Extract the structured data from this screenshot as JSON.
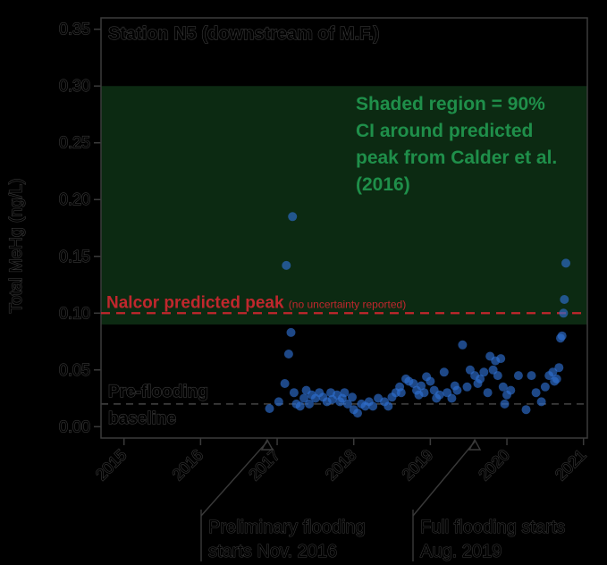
{
  "chart_data": {
    "type": "scatter",
    "title": "Station N5 (downstream of M.F.)",
    "xlabel": "",
    "ylabel": "Total MeHg (ng/L)",
    "xlim": [
      2014.7,
      2021.05
    ],
    "ylim": [
      -0.01,
      0.36
    ],
    "x_ticks": [
      2015,
      2016,
      2017,
      2018,
      2019,
      2020,
      2021
    ],
    "x_tick_labels": [
      "2015",
      "2016",
      "2017",
      "2018",
      "2019",
      "2020",
      "2021"
    ],
    "y_ticks": [
      0.0,
      0.05,
      0.1,
      0.15,
      0.2,
      0.25,
      0.3,
      0.35
    ],
    "y_tick_labels": [
      "0.00",
      "0.05",
      "0.10",
      "0.15",
      "0.20",
      "0.25",
      "0.30",
      "0.35"
    ],
    "colors": {
      "points": "#2e6fd0",
      "nalcor": "#c0272d",
      "shade": "#0c2a12",
      "ci_text": "#1f8f4a"
    },
    "shaded_region": {
      "ymin": 0.09,
      "ymax": 0.3,
      "label": "Shaded region = 90% CI around predicted peak from Calder et al. (2016)"
    },
    "ci_label_lines": [
      "Shaded region = 90%",
      "CI around predicted",
      "peak from Calder et al.",
      "(2016)"
    ],
    "nalcor_line": {
      "y": 0.1,
      "label": "Nalcor predicted peak",
      "note": "(no uncertainty reported)"
    },
    "baseline_line": {
      "y": 0.02,
      "label_line1": "Pre-flooding",
      "label_line2": "baseline"
    },
    "annotations": [
      {
        "x": 2016.87,
        "lines": [
          "Preliminary flooding",
          "starts Nov. 2016"
        ]
      },
      {
        "x": 2019.58,
        "lines": [
          "Full flooding starts",
          "Aug. 2019"
        ]
      }
    ],
    "points": [
      [
        2016.9,
        0.016
      ],
      [
        2017.02,
        0.022
      ],
      [
        2017.1,
        0.038
      ],
      [
        2017.12,
        0.142
      ],
      [
        2017.15,
        0.064
      ],
      [
        2017.18,
        0.083
      ],
      [
        2017.2,
        0.185
      ],
      [
        2017.22,
        0.03
      ],
      [
        2017.25,
        0.02
      ],
      [
        2017.3,
        0.018
      ],
      [
        2017.35,
        0.025
      ],
      [
        2017.38,
        0.032
      ],
      [
        2017.42,
        0.02
      ],
      [
        2017.45,
        0.028
      ],
      [
        2017.5,
        0.025
      ],
      [
        2017.55,
        0.03
      ],
      [
        2017.6,
        0.026
      ],
      [
        2017.65,
        0.022
      ],
      [
        2017.7,
        0.03
      ],
      [
        2017.72,
        0.024
      ],
      [
        2017.78,
        0.028
      ],
      [
        2017.82,
        0.022
      ],
      [
        2017.85,
        0.025
      ],
      [
        2017.88,
        0.03
      ],
      [
        2017.92,
        0.02
      ],
      [
        2017.98,
        0.026
      ],
      [
        2018.0,
        0.015
      ],
      [
        2018.05,
        0.012
      ],
      [
        2018.1,
        0.02
      ],
      [
        2018.15,
        0.018
      ],
      [
        2018.2,
        0.022
      ],
      [
        2018.25,
        0.018
      ],
      [
        2018.32,
        0.025
      ],
      [
        2018.4,
        0.022
      ],
      [
        2018.45,
        0.018
      ],
      [
        2018.5,
        0.026
      ],
      [
        2018.55,
        0.03
      ],
      [
        2018.6,
        0.035
      ],
      [
        2018.62,
        0.03
      ],
      [
        2018.68,
        0.042
      ],
      [
        2018.72,
        0.04
      ],
      [
        2018.78,
        0.038
      ],
      [
        2018.82,
        0.032
      ],
      [
        2018.85,
        0.028
      ],
      [
        2018.88,
        0.036
      ],
      [
        2018.92,
        0.03
      ],
      [
        2018.95,
        0.044
      ],
      [
        2019.0,
        0.04
      ],
      [
        2019.05,
        0.032
      ],
      [
        2019.08,
        0.025
      ],
      [
        2019.12,
        0.028
      ],
      [
        2019.18,
        0.048
      ],
      [
        2019.22,
        0.03
      ],
      [
        2019.28,
        0.025
      ],
      [
        2019.32,
        0.036
      ],
      [
        2019.35,
        0.032
      ],
      [
        2019.42,
        0.072
      ],
      [
        2019.48,
        0.035
      ],
      [
        2019.52,
        0.05
      ],
      [
        2019.58,
        0.045
      ],
      [
        2019.62,
        0.038
      ],
      [
        2019.65,
        0.042
      ],
      [
        2019.7,
        0.048
      ],
      [
        2019.75,
        0.03
      ],
      [
        2019.78,
        0.062
      ],
      [
        2019.82,
        0.05
      ],
      [
        2019.85,
        0.058
      ],
      [
        2019.88,
        0.045
      ],
      [
        2019.92,
        0.06
      ],
      [
        2019.95,
        0.035
      ],
      [
        2019.97,
        0.02
      ],
      [
        2020.0,
        0.028
      ],
      [
        2020.05,
        0.032
      ],
      [
        2020.15,
        0.045
      ],
      [
        2020.25,
        0.015
      ],
      [
        2020.32,
        0.045
      ],
      [
        2020.38,
        0.03
      ],
      [
        2020.45,
        0.022
      ],
      [
        2020.5,
        0.035
      ],
      [
        2020.55,
        0.045
      ],
      [
        2020.6,
        0.048
      ],
      [
        2020.62,
        0.04
      ],
      [
        2020.65,
        0.042
      ],
      [
        2020.68,
        0.052
      ],
      [
        2020.7,
        0.078
      ],
      [
        2020.72,
        0.08
      ],
      [
        2020.74,
        0.1
      ],
      [
        2020.75,
        0.112
      ],
      [
        2020.77,
        0.144
      ]
    ]
  }
}
